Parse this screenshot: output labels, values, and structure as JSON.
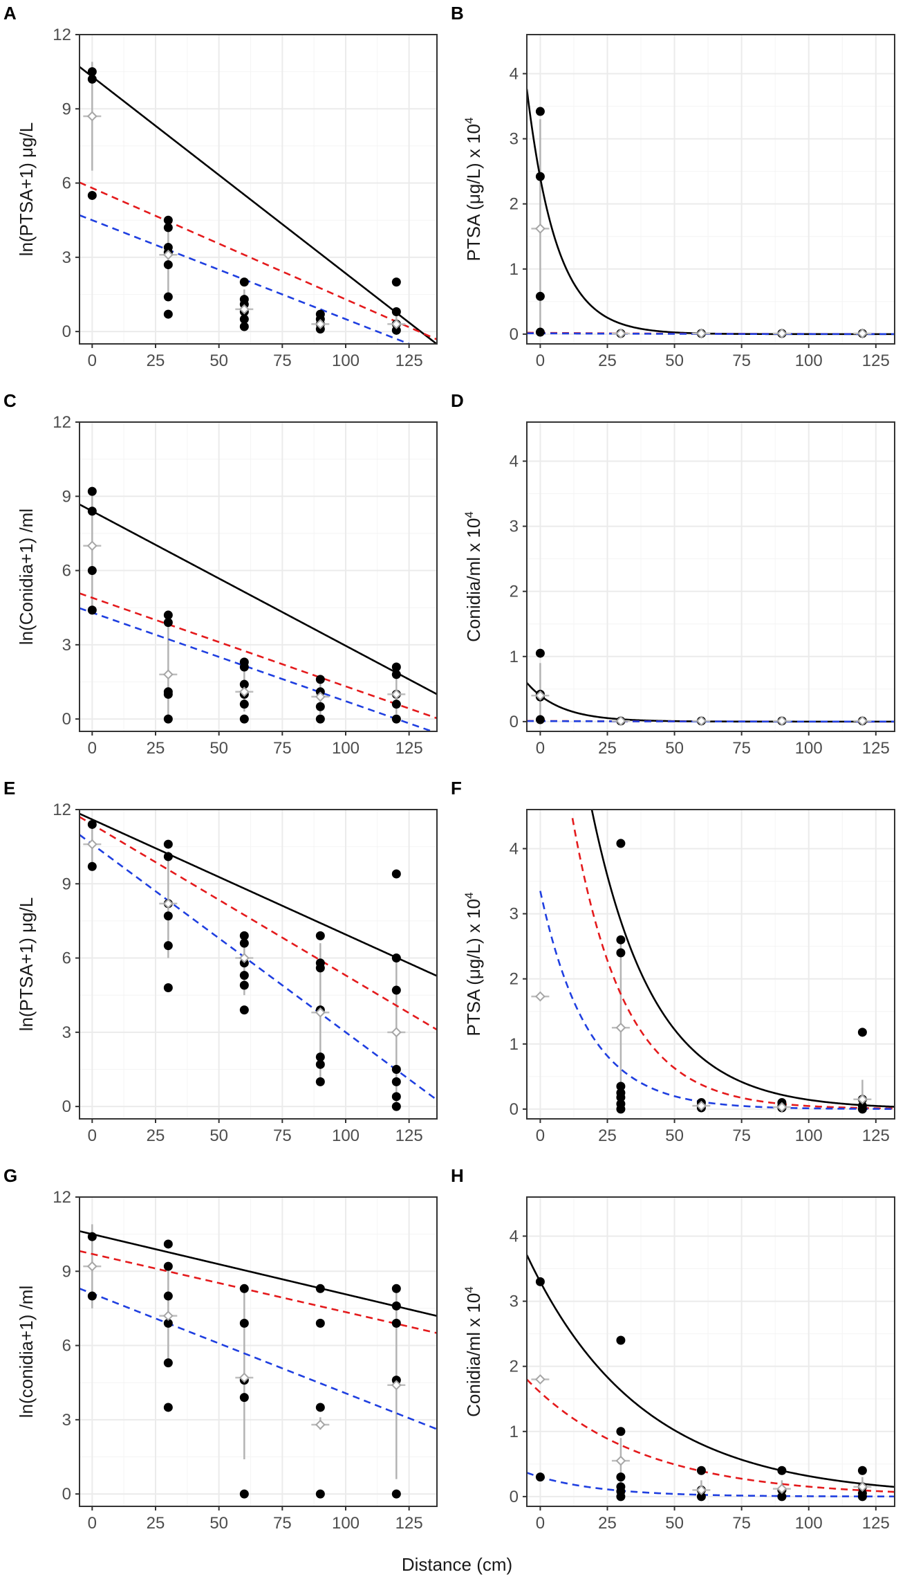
{
  "figure": {
    "x_axis_title": "Distance (cm)"
  },
  "chart_data": [
    {
      "panel": "A",
      "type": "scatter",
      "scale": "log",
      "ylabel_html": "ln(PTSA+1) μg/L",
      "ylim": [
        -0.5,
        12
      ],
      "yticks": [
        0,
        3,
        6,
        9,
        12
      ],
      "xlim": [
        -5,
        136
      ],
      "xticks": [
        0,
        25,
        50,
        75,
        100,
        125
      ],
      "points": {
        "x": [
          0,
          0,
          0,
          30,
          30,
          30,
          30,
          30,
          30,
          30,
          60,
          60,
          60,
          60,
          60,
          60,
          90,
          90,
          90,
          90,
          120,
          120,
          120,
          120
        ],
        "y": [
          10.5,
          10.2,
          5.5,
          4.5,
          4.2,
          3.4,
          3.2,
          2.7,
          1.4,
          0.7,
          2.0,
          1.3,
          1.1,
          0.8,
          0.5,
          0.2,
          0.7,
          0.5,
          0.3,
          0.1,
          2.0,
          0.8,
          0.3,
          0.05
        ]
      },
      "means": {
        "x": [
          0,
          30,
          60,
          90,
          120
        ],
        "y": [
          8.7,
          3.1,
          0.9,
          0.3,
          0.3
        ],
        "lower": [
          6.5,
          1.5,
          0.2,
          0.0,
          0.0
        ],
        "upper": [
          10.9,
          4.6,
          1.7,
          0.6,
          0.8
        ]
      },
      "lines": [
        {
          "name": "black",
          "color": "#000000",
          "dash": "solid",
          "form": "linear",
          "a": 10.3,
          "b": -0.0795
        },
        {
          "name": "red",
          "color": "#e41a1c",
          "dash": "dashed",
          "form": "linear",
          "a": 5.8,
          "b": -0.045
        },
        {
          "name": "blue",
          "color": "#1f3fe0",
          "dash": "dashed",
          "form": "linear",
          "a": 4.5,
          "b": -0.04
        }
      ]
    },
    {
      "panel": "B",
      "type": "scatter",
      "scale": "exp",
      "ylabel_html": "PTSA (μg/L) x 10<tspan dy='-10' font-size='17'>4</tspan>",
      "ylim": [
        -0.15,
        4.6
      ],
      "yticks": [
        0,
        1,
        2,
        3,
        4
      ],
      "xlim": [
        -5,
        132
      ],
      "xticks": [
        0,
        25,
        50,
        75,
        100,
        125
      ],
      "points": {
        "x": [
          0,
          0,
          0,
          0,
          30,
          60,
          90,
          120
        ],
        "y": [
          3.42,
          2.42,
          0.58,
          0.03,
          0.01,
          0.01,
          0.01,
          0.01
        ]
      },
      "means": {
        "x": [
          0,
          30,
          60,
          90,
          120
        ],
        "y": [
          1.62,
          0.01,
          0.01,
          0.01,
          0.01
        ],
        "lower": [
          0.0,
          0.0,
          0.0,
          0.0,
          0.0
        ],
        "upper": [
          3.3,
          0.02,
          0.02,
          0.02,
          0.02
        ]
      },
      "lines": [
        {
          "name": "black",
          "color": "#000000",
          "dash": "solid",
          "form": "exp",
          "a": 2.4,
          "b": -0.09
        },
        {
          "name": "red",
          "color": "#e41a1c",
          "dash": "dashed",
          "form": "exp",
          "a": 0.02,
          "b": -0.02
        },
        {
          "name": "blue",
          "color": "#1f3fe0",
          "dash": "dashed",
          "form": "exp",
          "a": 0.012,
          "b": -0.02
        }
      ]
    },
    {
      "panel": "C",
      "type": "scatter",
      "scale": "log",
      "ylabel_html": "ln(Conidia+1) /ml",
      "ylim": [
        -0.5,
        12
      ],
      "yticks": [
        0,
        3,
        6,
        9,
        12
      ],
      "xlim": [
        -5,
        136
      ],
      "xticks": [
        0,
        25,
        50,
        75,
        100,
        125
      ],
      "points": {
        "x": [
          0,
          0,
          0,
          0,
          30,
          30,
          30,
          30,
          30,
          60,
          60,
          60,
          60,
          60,
          60,
          90,
          90,
          90,
          90,
          120,
          120,
          120,
          120,
          120
        ],
        "y": [
          9.2,
          8.4,
          6.0,
          4.4,
          4.2,
          3.9,
          1.1,
          1.0,
          0.0,
          2.3,
          2.1,
          1.4,
          1.0,
          0.6,
          0.0,
          1.6,
          1.1,
          0.5,
          0.0,
          2.1,
          1.8,
          1.0,
          0.6,
          0.0
        ]
      },
      "means": {
        "x": [
          0,
          30,
          60,
          90,
          120
        ],
        "y": [
          7.0,
          1.8,
          1.1,
          0.9,
          1.0
        ],
        "lower": [
          4.5,
          0.1,
          0.3,
          0.2,
          0.2
        ],
        "upper": [
          9.3,
          3.8,
          2.1,
          1.6,
          1.9
        ]
      },
      "lines": [
        {
          "name": "black",
          "color": "#000000",
          "dash": "solid",
          "form": "linear",
          "a": 8.4,
          "b": -0.0544
        },
        {
          "name": "red",
          "color": "#e41a1c",
          "dash": "dashed",
          "form": "linear",
          "a": 4.9,
          "b": -0.0358
        },
        {
          "name": "blue",
          "color": "#1f3fe0",
          "dash": "dashed",
          "form": "linear",
          "a": 4.3,
          "b": -0.0358
        }
      ]
    },
    {
      "panel": "D",
      "type": "scatter",
      "scale": "exp",
      "ylabel_html": "Conidia/ml x 10<tspan dy='-10' font-size='17'>4</tspan>",
      "ylim": [
        -0.15,
        4.6
      ],
      "yticks": [
        0,
        1,
        2,
        3,
        4
      ],
      "xlim": [
        -5,
        132
      ],
      "xticks": [
        0,
        25,
        50,
        75,
        100,
        125
      ],
      "points": {
        "x": [
          0,
          0,
          0,
          0,
          30,
          60,
          90,
          120
        ],
        "y": [
          1.05,
          0.42,
          0.38,
          0.03,
          0.01,
          0.01,
          0.01,
          0.01
        ]
      },
      "means": {
        "x": [
          0,
          30,
          60,
          90,
          120
        ],
        "y": [
          0.4,
          0.01,
          0.01,
          0.01,
          0.01
        ],
        "lower": [
          0.0,
          0.0,
          0.0,
          0.0,
          0.0
        ],
        "upper": [
          0.9,
          0.02,
          0.02,
          0.02,
          0.02
        ]
      },
      "lines": [
        {
          "name": "black",
          "color": "#000000",
          "dash": "solid",
          "form": "exp",
          "a": 0.4,
          "b": -0.08
        },
        {
          "name": "red",
          "color": "#e41a1c",
          "dash": "dashed",
          "form": "exp",
          "a": 0.01,
          "b": -0.02
        },
        {
          "name": "blue",
          "color": "#1f3fe0",
          "dash": "dashed",
          "form": "exp",
          "a": 0.008,
          "b": -0.02
        }
      ]
    },
    {
      "panel": "E",
      "type": "scatter",
      "scale": "log",
      "ylabel_html": "ln(PTSA+1) μg/L",
      "ylim": [
        -0.5,
        12
      ],
      "yticks": [
        0,
        3,
        6,
        9,
        12
      ],
      "xlim": [
        -5,
        136
      ],
      "xticks": [
        0,
        25,
        50,
        75,
        100,
        125
      ],
      "points": {
        "x": [
          0,
          0,
          30,
          30,
          30,
          30,
          30,
          30,
          60,
          60,
          60,
          60,
          60,
          60,
          90,
          90,
          90,
          90,
          90,
          90,
          90,
          120,
          120,
          120,
          120,
          120,
          120,
          120
        ],
        "y": [
          11.4,
          9.7,
          10.6,
          10.1,
          8.2,
          7.7,
          6.5,
          4.8,
          6.9,
          6.6,
          5.8,
          5.3,
          4.9,
          3.9,
          6.9,
          5.8,
          5.6,
          3.9,
          2.0,
          1.7,
          1.0,
          9.4,
          6.0,
          4.7,
          1.5,
          1.0,
          0.4,
          0.0
        ]
      },
      "means": {
        "x": [
          0,
          30,
          60,
          90,
          120
        ],
        "y": [
          10.6,
          8.2,
          6.0,
          3.8,
          3.0
        ],
        "lower": [
          9.7,
          6.0,
          4.5,
          1.0,
          0.0
        ],
        "upper": [
          11.5,
          10.3,
          7.0,
          6.6,
          6.0
        ]
      },
      "lines": [
        {
          "name": "black",
          "color": "#000000",
          "dash": "solid",
          "form": "linear",
          "a": 11.6,
          "b": -0.0465
        },
        {
          "name": "red",
          "color": "#e41a1c",
          "dash": "dashed",
          "form": "linear",
          "a": 11.4,
          "b": -0.061
        },
        {
          "name": "blue",
          "color": "#1f3fe0",
          "dash": "dashed",
          "form": "linear",
          "a": 10.6,
          "b": -0.076
        }
      ]
    },
    {
      "panel": "F",
      "type": "scatter",
      "scale": "exp",
      "ylabel_html": "PTSA (μg/L) x 10<tspan dy='-10' font-size='17'>4</tspan>",
      "ylim": [
        -0.15,
        4.6
      ],
      "yticks": [
        0,
        1,
        2,
        3,
        4
      ],
      "xlim": [
        -5,
        132
      ],
      "xticks": [
        0,
        25,
        50,
        75,
        100,
        125
      ],
      "points": {
        "x": [
          30,
          30,
          30,
          30,
          30,
          30,
          30,
          30,
          60,
          60,
          60,
          90,
          90,
          90,
          120,
          120,
          120,
          120
        ],
        "y": [
          4.08,
          2.6,
          2.4,
          0.35,
          0.25,
          0.18,
          0.08,
          0.0,
          0.1,
          0.05,
          0.02,
          0.1,
          0.05,
          0.02,
          1.18,
          0.15,
          0.05,
          0.0
        ]
      },
      "means": {
        "x": [
          0,
          30,
          60,
          90,
          120
        ],
        "y": [
          1.73,
          1.25,
          0.05,
          0.03,
          0.15
        ],
        "lower": [
          1.73,
          0.3,
          0.0,
          0.0,
          0.0
        ],
        "upper": [
          1.73,
          2.6,
          0.12,
          0.1,
          0.45
        ]
      },
      "lines": [
        {
          "name": "black",
          "color": "#000000",
          "dash": "solid",
          "form": "exp",
          "a": 10.5,
          "b": -0.043,
          "xmin": 18
        },
        {
          "name": "red",
          "color": "#e41a1c",
          "dash": "dashed",
          "form": "exp",
          "a": 8.3,
          "b": -0.0516,
          "xmin": 12
        },
        {
          "name": "blue",
          "color": "#1f3fe0",
          "dash": "dashed",
          "form": "exp",
          "a": 3.35,
          "b": -0.0565,
          "xmin": 0
        }
      ]
    },
    {
      "panel": "G",
      "type": "scatter",
      "scale": "log",
      "ylabel_html": "ln(conidia+1) /ml",
      "ylim": [
        -0.5,
        12
      ],
      "yticks": [
        0,
        3,
        6,
        9,
        12
      ],
      "xlim": [
        -5,
        136
      ],
      "xticks": [
        0,
        25,
        50,
        75,
        100,
        125
      ],
      "points": {
        "x": [
          0,
          0,
          30,
          30,
          30,
          30,
          30,
          30,
          60,
          60,
          60,
          60,
          60,
          90,
          90,
          90,
          90,
          120,
          120,
          120,
          120,
          120
        ],
        "y": [
          10.4,
          8.0,
          10.1,
          9.2,
          8.0,
          6.9,
          5.3,
          3.5,
          8.3,
          6.9,
          4.6,
          3.9,
          0.0,
          8.3,
          6.9,
          3.5,
          0.0,
          8.3,
          7.6,
          6.9,
          4.6,
          0.0
        ]
      },
      "means": {
        "x": [
          0,
          30,
          60,
          90,
          120
        ],
        "y": [
          9.2,
          7.2,
          4.7,
          2.8,
          4.4
        ],
        "lower": [
          7.5,
          5.3,
          1.4,
          2.6,
          0.6
        ],
        "upper": [
          10.9,
          9.3,
          8.2,
          3.1,
          8.2
        ]
      },
      "lines": [
        {
          "name": "black",
          "color": "#000000",
          "dash": "solid",
          "form": "linear",
          "a": 10.5,
          "b": -0.0243
        },
        {
          "name": "red",
          "color": "#e41a1c",
          "dash": "dashed",
          "form": "linear",
          "a": 9.7,
          "b": -0.0235
        },
        {
          "name": "blue",
          "color": "#1f3fe0",
          "dash": "dashed",
          "form": "linear",
          "a": 8.1,
          "b": -0.0403
        }
      ]
    },
    {
      "panel": "H",
      "type": "scatter",
      "scale": "exp",
      "ylabel_html": "Conidia/ml x 10<tspan dy='-10' font-size='17'>4</tspan>",
      "ylim": [
        -0.15,
        4.6
      ],
      "yticks": [
        0,
        1,
        2,
        3,
        4
      ],
      "xlim": [
        -5,
        132
      ],
      "xticks": [
        0,
        25,
        50,
        75,
        100,
        125
      ],
      "points": {
        "x": [
          0,
          0,
          30,
          30,
          30,
          30,
          30,
          30,
          60,
          60,
          60,
          90,
          90,
          90,
          120,
          120,
          120,
          120
        ],
        "y": [
          3.3,
          0.3,
          2.4,
          1.0,
          0.3,
          0.15,
          0.08,
          0.0,
          0.4,
          0.1,
          0.0,
          0.4,
          0.1,
          0.0,
          0.4,
          0.15,
          0.05,
          0.0
        ]
      },
      "means": {
        "x": [
          0,
          30,
          60,
          90,
          120
        ],
        "y": [
          1.8,
          0.55,
          0.1,
          0.12,
          0.15
        ],
        "lower": [
          1.8,
          0.2,
          0.0,
          0.02,
          0.02
        ],
        "upper": [
          1.8,
          0.9,
          0.25,
          0.25,
          0.3
        ]
      },
      "lines": [
        {
          "name": "black",
          "color": "#000000",
          "dash": "solid",
          "form": "exp",
          "a": 3.3,
          "b": -0.0235
        },
        {
          "name": "red",
          "color": "#e41a1c",
          "dash": "dashed",
          "form": "exp",
          "a": 1.6,
          "b": -0.0235
        },
        {
          "name": "blue",
          "color": "#1f3fe0",
          "dash": "dashed",
          "form": "exp",
          "a": 0.3,
          "b": -0.04
        }
      ]
    }
  ]
}
